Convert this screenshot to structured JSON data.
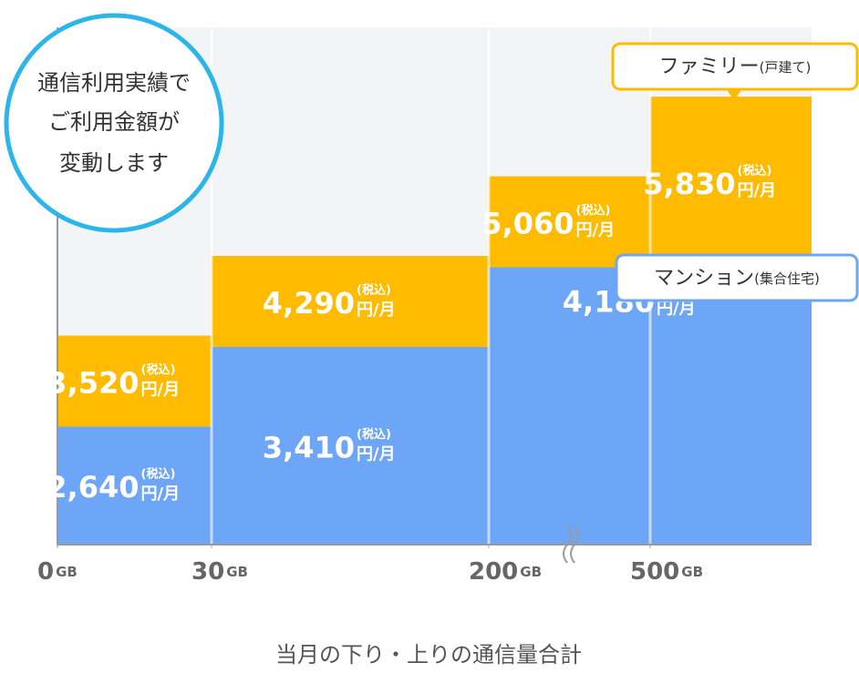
{
  "chart_data": {
    "type": "step-bar",
    "badge": [
      "通信利用実績で",
      "ご利用金額が",
      "変動します"
    ],
    "categories": [
      "0",
      "30",
      "200",
      "500"
    ],
    "x_unit": "GB",
    "xlabel": "当月の下り・上りの通信量合計",
    "tax_note": "(税込)",
    "unit": "円/月",
    "ylim": [
      1500,
      6500
    ],
    "series": [
      {
        "name": "ファミリー",
        "note": "(戸建て)",
        "color": "#ffbb00",
        "values": [
          3520,
          4290,
          5060,
          5830
        ],
        "value_labels": [
          "3,520",
          "4,290",
          "5,060",
          "5,830"
        ]
      },
      {
        "name": "マンション",
        "note": "(集合住宅)",
        "color": "#6ea6f7",
        "values": [
          2640,
          3410,
          4180,
          4180
        ],
        "value_labels": [
          "2,640",
          "3,410",
          "4,180",
          null
        ]
      }
    ]
  }
}
